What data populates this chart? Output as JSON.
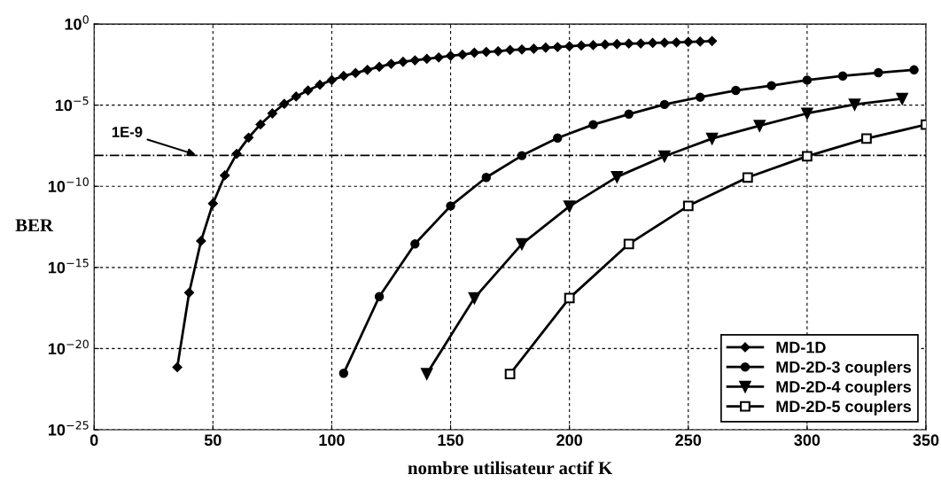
{
  "chart_data": {
    "type": "line",
    "xlabel": "nombre utilisateur actif K",
    "ylabel": "BER",
    "log": "y",
    "xlim": [
      0,
      350
    ],
    "xticks": [
      0,
      50,
      100,
      150,
      200,
      250,
      300,
      350
    ],
    "ylim": [
      1e-25,
      1
    ],
    "yticks": [
      {
        "value": 1,
        "label": "10$^{0}$"
      },
      {
        "value": 1e-05,
        "label": "10$^{−5}$"
      },
      {
        "value": 1e-10,
        "label": "10$^{−10}$"
      },
      {
        "value": 1e-15,
        "label": "10$^{−15}$"
      },
      {
        "value": 1e-20,
        "label": "10$^{−20}$"
      },
      {
        "value": 1e-25,
        "label": "10$^{−25}$"
      }
    ],
    "grid": true,
    "legend": "bottom right",
    "line_style": "solid",
    "series": [
      {
        "name": "MD-1D",
        "color": "#000000",
        "marker": "diamond",
        "x": [
          35,
          40,
          45,
          50,
          55,
          60,
          65,
          70,
          75,
          80,
          85,
          90,
          95,
          100,
          105,
          110,
          115,
          120,
          125,
          130,
          135,
          140,
          145,
          150,
          155,
          160,
          165,
          170,
          175,
          180,
          185,
          190,
          195,
          200,
          205,
          210,
          215,
          220,
          225,
          230,
          235,
          240,
          245,
          250,
          255,
          260
        ],
        "values": [
          7.1e-22,
          2.8e-17,
          4.3e-14,
          8.7e-12,
          4.7e-10,
          1e-08,
          1e-07,
          6.5e-07,
          3.1e-06,
          1.2e-05,
          3.4e-05,
          8.1e-05,
          0.00018,
          0.00035,
          0.00063,
          0.00095,
          0.0015,
          0.0023,
          0.0035,
          0.0047,
          0.0058,
          0.0071,
          0.0087,
          0.011,
          0.013,
          0.017,
          0.019,
          0.021,
          0.025,
          0.027,
          0.03,
          0.035,
          0.038,
          0.043,
          0.047,
          0.05,
          0.055,
          0.058,
          0.062,
          0.063,
          0.068,
          0.071,
          0.074,
          0.079,
          0.083,
          0.089
        ]
      },
      {
        "name": "MD-2D-3 couplers",
        "color": "#000000",
        "marker": "circle",
        "x": [
          105,
          120,
          135,
          150,
          165,
          180,
          195,
          210,
          225,
          240,
          255,
          270,
          285,
          300,
          315,
          330,
          345
        ],
        "values": [
          3e-22,
          1.6e-17,
          2.8e-14,
          6.2e-12,
          3.5e-10,
          7.8e-09,
          9.5e-08,
          6.3e-07,
          2.8e-06,
          1.1e-05,
          3.1e-05,
          8.1e-05,
          0.00016,
          0.00035,
          0.00063,
          0.001,
          0.0015
        ]
      },
      {
        "name": "MD-2D-4 couplers",
        "color": "#000000",
        "marker": "triangle",
        "x": [
          140,
          160,
          180,
          200,
          220,
          240,
          260,
          280,
          300,
          320,
          340
        ],
        "values": [
          2.8e-22,
          1.3e-17,
          2.8e-14,
          5.8e-12,
          3.8e-10,
          7.1e-09,
          8.7e-08,
          5.4e-07,
          3.1e-06,
          1.1e-05,
          2.5e-05
        ]
      },
      {
        "name": "MD-2D-5 couplers",
        "color": "#000000",
        "marker": "square",
        "x": [
          175,
          200,
          225,
          250,
          275,
          300,
          325,
          350
        ],
        "values": [
          2.7e-22,
          1.3e-17,
          2.8e-14,
          6.2e-12,
          3.5e-10,
          7.1e-09,
          8.7e-08,
          6.3e-07
        ]
      }
    ],
    "ref_lines": [
      {
        "axis": "y",
        "value": 8e-09,
        "color": "#000000",
        "line_style": "dashdot",
        "label": "1E-9"
      }
    ]
  }
}
